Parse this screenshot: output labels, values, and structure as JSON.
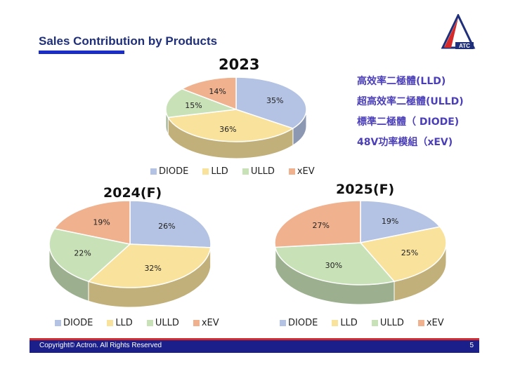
{
  "header": {
    "title": "Sales Contribution by Products",
    "logo_text": "ATC"
  },
  "notes": [
    "高效率二極體(LLD)",
    "超高效率二極體(ULLD)",
    "標準二極體（ DIODE)",
    "48V功率模組（xEV)"
  ],
  "colors": {
    "DIODE": "#b4c3e3",
    "LLD": "#f9e29c",
    "ULLD": "#c8e1b7",
    "xEV": "#efb18e",
    "title_blue": "#1f2f7a",
    "footer_bar": "#1b1f8a",
    "footer_line": "#d42a2a"
  },
  "chart_data": [
    {
      "type": "pie",
      "title": "2023",
      "categories": [
        "DIODE",
        "LLD",
        "ULLD",
        "xEV"
      ],
      "values": [
        35,
        36,
        15,
        14
      ],
      "value_format": "percent",
      "legend": [
        "DIODE",
        "LLD",
        "ULLD",
        "xEV"
      ],
      "legend_placement": "bottom"
    },
    {
      "type": "pie",
      "title": "2024(F)",
      "categories": [
        "DIODE",
        "LLD",
        "ULLD",
        "xEV"
      ],
      "values": [
        26,
        32,
        22,
        19
      ],
      "value_format": "percent",
      "legend": [
        "DIODE",
        "LLD",
        "ULLD",
        "xEV"
      ],
      "legend_placement": "bottom"
    },
    {
      "type": "pie",
      "title": "2025(F)",
      "categories": [
        "DIODE",
        "LLD",
        "ULLD",
        "xEV"
      ],
      "values": [
        19,
        25,
        30,
        27
      ],
      "value_format": "percent",
      "legend": [
        "DIODE",
        "LLD",
        "ULLD",
        "xEV"
      ],
      "legend_placement": "bottom"
    }
  ],
  "footer": {
    "copyright": "Copyright© Actron. All Rights Reserved",
    "page_number": "5"
  }
}
